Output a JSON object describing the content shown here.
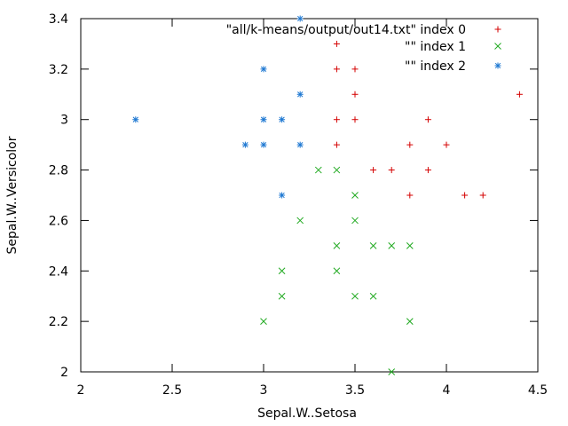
{
  "chart_data": {
    "type": "scatter",
    "xlabel": "Sepal.W..Setosa",
    "ylabel": "Sepal.W..Versicolor",
    "xlim": [
      2,
      4.5
    ],
    "ylim": [
      2,
      3.4
    ],
    "xticks": [
      2,
      2.5,
      3,
      3.5,
      4,
      4.5
    ],
    "xtick_labels": [
      "2",
      "2.5",
      "3",
      "3.5",
      "4",
      "4.5"
    ],
    "yticks": [
      2,
      2.2,
      2.4,
      2.6,
      2.8,
      3,
      3.2,
      3.4
    ],
    "ytick_labels": [
      "2",
      "2.2",
      "2.4",
      "2.6",
      "2.8",
      "3",
      "3.2",
      "3.4"
    ],
    "grid": false,
    "legend_position": "top-right",
    "series": [
      {
        "name": "\"all/k-means/output/out14.txt\" index 0",
        "marker": "plus",
        "color": "#d40000",
        "points": [
          [
            3.4,
            3.3
          ],
          [
            3.4,
            3.2
          ],
          [
            3.5,
            3.2
          ],
          [
            3.5,
            3.1
          ],
          [
            4.4,
            3.1
          ],
          [
            3.4,
            3.0
          ],
          [
            3.5,
            3.0
          ],
          [
            3.9,
            3.0
          ],
          [
            3.4,
            2.9
          ],
          [
            3.8,
            2.9
          ],
          [
            4.0,
            2.9
          ],
          [
            3.6,
            2.8
          ],
          [
            3.7,
            2.8
          ],
          [
            3.9,
            2.8
          ],
          [
            3.8,
            2.7
          ],
          [
            4.1,
            2.7
          ],
          [
            4.2,
            2.7
          ]
        ]
      },
      {
        "name": "\"\" index 1",
        "marker": "cross",
        "color": "#22aa22",
        "points": [
          [
            3.3,
            2.8
          ],
          [
            3.4,
            2.8
          ],
          [
            3.5,
            2.7
          ],
          [
            3.2,
            2.6
          ],
          [
            3.5,
            2.6
          ],
          [
            3.4,
            2.5
          ],
          [
            3.6,
            2.5
          ],
          [
            3.7,
            2.5
          ],
          [
            3.8,
            2.5
          ],
          [
            3.1,
            2.4
          ],
          [
            3.4,
            2.4
          ],
          [
            3.1,
            2.3
          ],
          [
            3.5,
            2.3
          ],
          [
            3.6,
            2.3
          ],
          [
            3.0,
            2.2
          ],
          [
            3.8,
            2.2
          ],
          [
            3.7,
            2.0
          ]
        ]
      },
      {
        "name": "\"\" index 2",
        "marker": "star",
        "color": "#1e78d2",
        "points": [
          [
            3.2,
            3.4
          ],
          [
            3.0,
            3.2
          ],
          [
            3.2,
            3.1
          ],
          [
            2.3,
            3.0
          ],
          [
            3.0,
            3.0
          ],
          [
            3.1,
            3.0
          ],
          [
            2.9,
            2.9
          ],
          [
            3.0,
            2.9
          ],
          [
            3.2,
            2.9
          ],
          [
            3.1,
            2.7
          ]
        ]
      }
    ]
  }
}
